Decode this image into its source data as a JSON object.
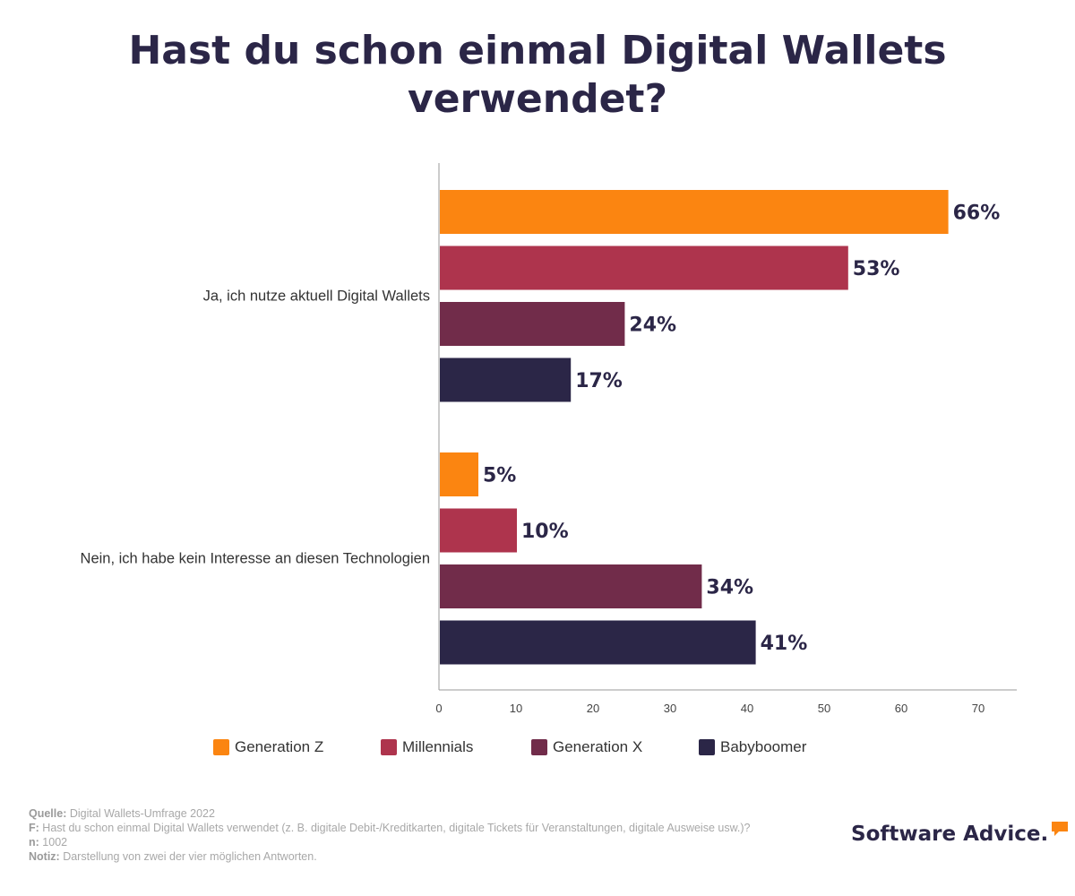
{
  "title": "Hast du schon einmal Digital Wallets verwendet?",
  "colors": {
    "Generation Z": "#fb8511",
    "Millennials": "#ae344d",
    "Generation X": "#712c4a",
    "Babyboomer": "#2b2647"
  },
  "chart_data": {
    "type": "bar",
    "orientation": "horizontal",
    "categories": [
      "Ja, ich nutze aktuell Digital Wallets",
      "Nein, ich habe kein Interesse an diesen Technologien"
    ],
    "series": [
      {
        "name": "Generation Z",
        "values": [
          66,
          5
        ]
      },
      {
        "name": "Millennials",
        "values": [
          53,
          10
        ]
      },
      {
        "name": "Generation X",
        "values": [
          24,
          34
        ]
      },
      {
        "name": "Babyboomer",
        "values": [
          17,
          41
        ]
      }
    ],
    "value_suffix": "%",
    "xlim": [
      0,
      75
    ],
    "xticks": [
      0,
      10,
      20,
      30,
      40,
      50,
      60,
      70
    ],
    "grid": false,
    "legend": "bottom"
  },
  "footer": {
    "source_label": "Quelle:",
    "source_text": "Digital Wallets-Umfrage 2022",
    "question_label": "F:",
    "question_text": "Hast du schon einmal Digital Wallets verwendet (z. B. digitale Debit-/Kreditkarten, digitale Tickets für Veranstaltungen, digitale Ausweise usw.)?",
    "n_label": "n:",
    "n_text": "1002",
    "note_label": "Notiz:",
    "note_text": "Darstellung von zwei der vier möglichen Antworten."
  },
  "logo": {
    "text": "Software Advice.",
    "icon": "speech-bubble-icon"
  }
}
